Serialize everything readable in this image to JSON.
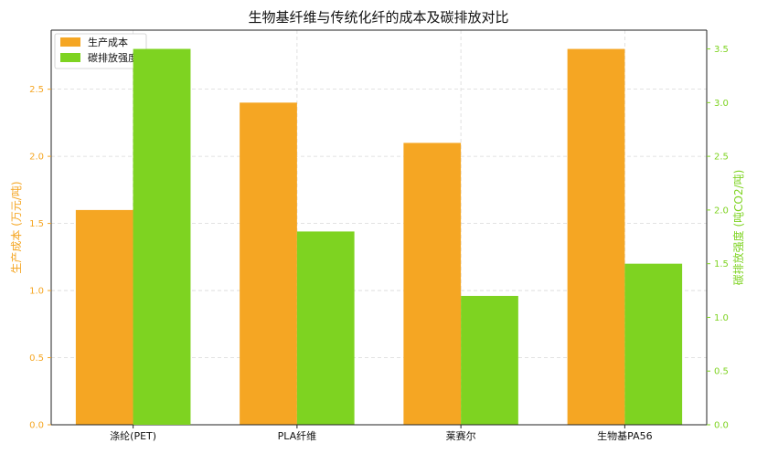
{
  "chart_data": {
    "type": "bar",
    "title": "生物基纤维与传统化纤的成本及碳排放对比",
    "categories": [
      "涤纶(PET)",
      "PLA纤维",
      "莱赛尔",
      "生物基PA56"
    ],
    "series": [
      {
        "name": "生产成本",
        "axis": "left",
        "color": "#F5A623",
        "values": [
          1.6,
          2.4,
          2.1,
          2.8
        ]
      },
      {
        "name": "碳排放强度",
        "axis": "right",
        "color": "#7ED321",
        "values": [
          3.5,
          1.8,
          1.2,
          1.5
        ]
      }
    ],
    "ylabel": "生产成本 (万元/吨)",
    "y2label": "碳排放强度 (吨CO2/吨)",
    "ylim": [
      0,
      2.94
    ],
    "y2lim": [
      0,
      3.675
    ],
    "yticks": [
      "0.0",
      "0.5",
      "1.0",
      "1.5",
      "2.0",
      "2.5"
    ],
    "y2ticks": [
      "0.0",
      "0.5",
      "1.0",
      "1.5",
      "2.0",
      "2.5",
      "3.0",
      "3.5"
    ],
    "grid": true,
    "legend_position": "top-left"
  }
}
